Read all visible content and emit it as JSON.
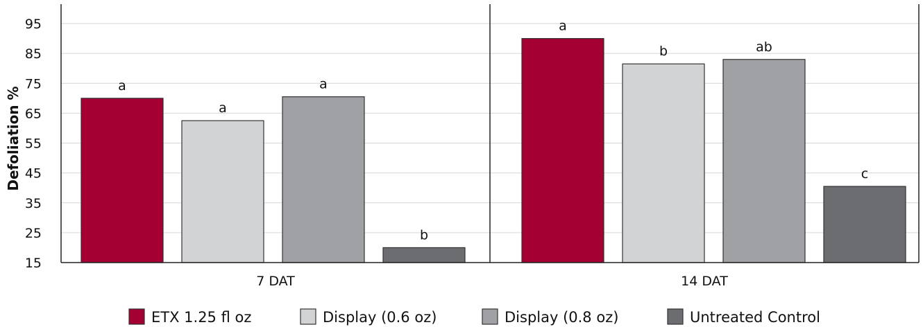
{
  "chart_data": {
    "type": "bar",
    "ylabel": "Defoliation %",
    "xlabel": "",
    "ylim": [
      15,
      100
    ],
    "yticks": [
      15,
      25,
      35,
      45,
      55,
      65,
      75,
      85,
      95
    ],
    "grid": true,
    "legend_position": "bottom",
    "categories": [
      "7 DAT",
      "14 DAT"
    ],
    "series": [
      {
        "name": "ETX 1.25 fl oz",
        "color": "#a50034",
        "values": [
          70,
          90
        ],
        "labels": [
          "a",
          "a"
        ]
      },
      {
        "name": "Display (0.6 oz)",
        "color": "#d2d3d5",
        "values": [
          62.5,
          81.5
        ],
        "labels": [
          "a",
          "b"
        ]
      },
      {
        "name": "Display (0.8 oz)",
        "color": "#a0a1a5",
        "values": [
          70.5,
          83
        ],
        "labels": [
          "a",
          "ab"
        ]
      },
      {
        "name": "Untreated Control",
        "color": "#6c6d71",
        "values": [
          20,
          40.5
        ],
        "labels": [
          "b",
          "c"
        ]
      }
    ]
  }
}
